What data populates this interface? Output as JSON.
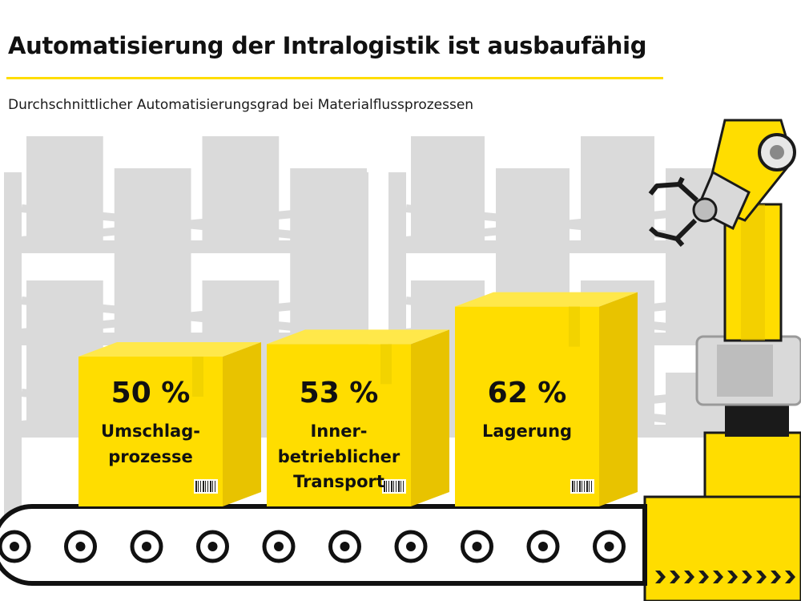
{
  "title": "Automatisierung der Intralogistik ist ausbaufähig",
  "subtitle": "Durchschnittlicher Automatisierungsgrad bei Materialflussprozessen",
  "colors": {
    "accent": "#FFDD00",
    "accent_side": "#E8C300",
    "accent_top": "#FFE84A",
    "shelf_gray": "#DADADA",
    "text": "#111111",
    "belt": "#111111"
  },
  "chart_data": {
    "type": "bar",
    "unit": "%",
    "categories": [
      "Umschlag-\nprozesse",
      "Inner-\nbetrieblicher\nTransport",
      "Lagerung"
    ],
    "values": [
      50,
      53,
      62
    ],
    "value_labels": [
      "50 %",
      "53 %",
      "62 %"
    ],
    "title": "Automatisierung der Intralogistik ist ausbaufähig",
    "subtitle": "Durchschnittlicher Automatisierungsgrad bei Materialflussprozessen",
    "xlabel": "",
    "ylabel": "",
    "ylim": [
      0,
      100
    ],
    "grid": false,
    "legend": "none"
  }
}
